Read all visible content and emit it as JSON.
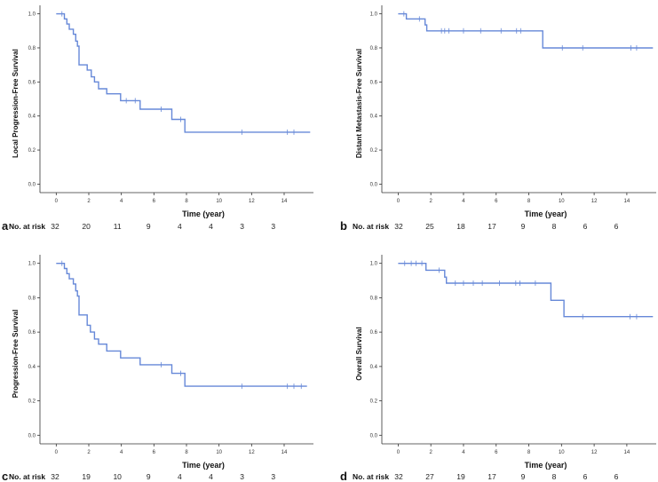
{
  "colors": {
    "curve": "#6688d8",
    "axis": "#333333"
  },
  "labels": {
    "at_risk": "No. at risk",
    "xlabel": "Time (year)"
  },
  "chart_data": [
    {
      "panel": "a",
      "type": "line",
      "ylabel": "Local Progression-Free Survival",
      "xlabel": "Time (year)",
      "xlim": [
        -1,
        15.8
      ],
      "ylim": [
        -0.05,
        1.05
      ],
      "xticks": [
        "0",
        "2",
        "4",
        "6",
        "8",
        "10",
        "12",
        "14"
      ],
      "yticks": [
        "0.0",
        "0.2",
        "0.4",
        "0.6",
        "0.8",
        "1.0"
      ],
      "steps": [
        [
          0,
          1.0
        ],
        [
          0.5,
          0.97
        ],
        [
          0.65,
          0.94
        ],
        [
          0.8,
          0.91
        ],
        [
          1.05,
          0.88
        ],
        [
          1.2,
          0.84
        ],
        [
          1.3,
          0.81
        ],
        [
          1.4,
          0.7
        ],
        [
          1.9,
          0.67
        ],
        [
          2.15,
          0.63
        ],
        [
          2.35,
          0.6
        ],
        [
          2.6,
          0.56
        ],
        [
          3.1,
          0.53
        ],
        [
          3.95,
          0.49
        ],
        [
          5.15,
          0.44
        ],
        [
          7.1,
          0.38
        ],
        [
          7.9,
          0.305
        ],
        [
          15.6,
          0.305
        ]
      ],
      "censors": [
        [
          0.35,
          1.0
        ],
        [
          4.3,
          0.49
        ],
        [
          4.85,
          0.49
        ],
        [
          6.45,
          0.44
        ],
        [
          7.65,
          0.38
        ],
        [
          11.4,
          0.305
        ],
        [
          14.2,
          0.305
        ],
        [
          14.6,
          0.305
        ]
      ],
      "risk": [
        "32",
        "20",
        "11",
        "9",
        "4",
        "4",
        "3",
        "3"
      ]
    },
    {
      "panel": "b",
      "type": "line",
      "ylabel": "Distant Metastasis-Free Survival",
      "xlabel": "Time (year)",
      "xlim": [
        -1,
        15.8
      ],
      "ylim": [
        -0.05,
        1.05
      ],
      "xticks": [
        "0",
        "2",
        "4",
        "6",
        "8",
        "10",
        "12",
        "14"
      ],
      "yticks": [
        "0.0",
        "0.2",
        "0.4",
        "0.6",
        "0.8",
        "1.0"
      ],
      "steps": [
        [
          0,
          1.0
        ],
        [
          0.5,
          0.97
        ],
        [
          1.65,
          0.935
        ],
        [
          1.75,
          0.9
        ],
        [
          8.85,
          0.8
        ],
        [
          15.6,
          0.8
        ]
      ],
      "censors": [
        [
          0.35,
          1.0
        ],
        [
          1.3,
          0.97
        ],
        [
          2.65,
          0.9
        ],
        [
          2.85,
          0.9
        ],
        [
          3.1,
          0.9
        ],
        [
          4.0,
          0.9
        ],
        [
          5.05,
          0.9
        ],
        [
          6.3,
          0.9
        ],
        [
          7.25,
          0.9
        ],
        [
          7.5,
          0.9
        ],
        [
          10.05,
          0.8
        ],
        [
          11.3,
          0.8
        ],
        [
          14.25,
          0.8
        ],
        [
          14.6,
          0.8
        ]
      ],
      "risk": [
        "32",
        "25",
        "18",
        "17",
        "9",
        "8",
        "6",
        "6"
      ]
    },
    {
      "panel": "c",
      "type": "line",
      "ylabel": "Progression-Free Survival",
      "xlabel": "Time (year)",
      "xlim": [
        -1,
        15.8
      ],
      "ylim": [
        -0.05,
        1.05
      ],
      "xticks": [
        "0",
        "2",
        "4",
        "6",
        "8",
        "10",
        "12",
        "14"
      ],
      "yticks": [
        "0.0",
        "0.2",
        "0.4",
        "0.6",
        "0.8",
        "1.0"
      ],
      "steps": [
        [
          0,
          1.0
        ],
        [
          0.5,
          0.97
        ],
        [
          0.65,
          0.94
        ],
        [
          0.8,
          0.91
        ],
        [
          1.05,
          0.88
        ],
        [
          1.2,
          0.84
        ],
        [
          1.3,
          0.81
        ],
        [
          1.4,
          0.7
        ],
        [
          1.9,
          0.64
        ],
        [
          2.1,
          0.6
        ],
        [
          2.35,
          0.56
        ],
        [
          2.6,
          0.53
        ],
        [
          3.1,
          0.49
        ],
        [
          3.95,
          0.45
        ],
        [
          5.15,
          0.41
        ],
        [
          7.1,
          0.36
        ],
        [
          7.9,
          0.285
        ],
        [
          15.4,
          0.285
        ]
      ],
      "censors": [
        [
          0.35,
          1.0
        ],
        [
          6.45,
          0.41
        ],
        [
          7.65,
          0.36
        ],
        [
          11.4,
          0.285
        ],
        [
          14.2,
          0.285
        ],
        [
          14.6,
          0.285
        ],
        [
          15.05,
          0.285
        ]
      ],
      "risk": [
        "32",
        "19",
        "10",
        "9",
        "4",
        "4",
        "3",
        "3"
      ]
    },
    {
      "panel": "d",
      "type": "line",
      "ylabel": "Overall Survival",
      "xlabel": "Time (year)",
      "xlim": [
        -1,
        15.8
      ],
      "ylim": [
        -0.05,
        1.05
      ],
      "xticks": [
        "0",
        "2",
        "4",
        "6",
        "8",
        "10",
        "12",
        "14"
      ],
      "yticks": [
        "0.0",
        "0.2",
        "0.4",
        "0.6",
        "0.8",
        "1.0"
      ],
      "steps": [
        [
          0,
          1.0
        ],
        [
          1.7,
          0.96
        ],
        [
          2.85,
          0.92
        ],
        [
          2.95,
          0.885
        ],
        [
          9.35,
          0.785
        ],
        [
          10.15,
          0.69
        ],
        [
          15.6,
          0.69
        ]
      ],
      "censors": [
        [
          0.4,
          1.0
        ],
        [
          0.8,
          1.0
        ],
        [
          1.1,
          1.0
        ],
        [
          1.45,
          1.0
        ],
        [
          2.5,
          0.96
        ],
        [
          3.5,
          0.885
        ],
        [
          4.0,
          0.885
        ],
        [
          4.6,
          0.885
        ],
        [
          5.15,
          0.885
        ],
        [
          6.2,
          0.885
        ],
        [
          7.2,
          0.885
        ],
        [
          7.45,
          0.885
        ],
        [
          8.4,
          0.885
        ],
        [
          11.3,
          0.69
        ],
        [
          14.2,
          0.69
        ],
        [
          14.6,
          0.69
        ]
      ],
      "risk": [
        "32",
        "27",
        "19",
        "17",
        "9",
        "8",
        "6",
        "6"
      ]
    }
  ]
}
